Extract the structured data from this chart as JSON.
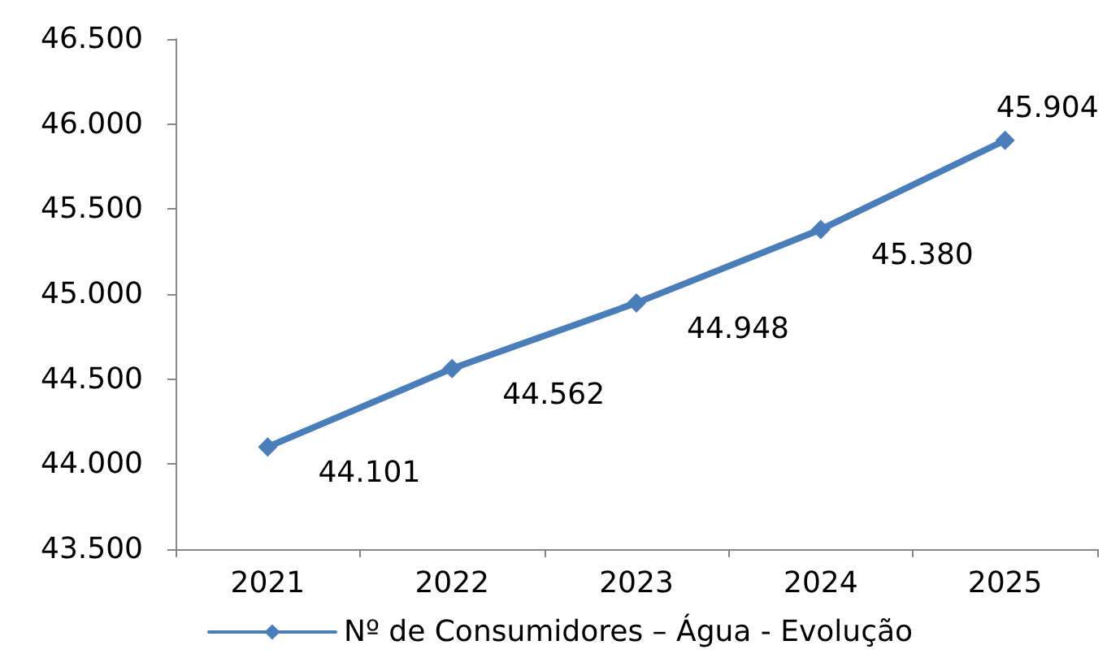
{
  "chart_data": {
    "type": "line",
    "categories": [
      "2021",
      "2022",
      "2023",
      "2024",
      "2025"
    ],
    "series": [
      {
        "name": "Nº de Consumidores – Água - Evolução",
        "color": "#4a7ebb",
        "values": [
          44101,
          44562,
          44948,
          45380,
          45904
        ],
        "value_labels": [
          "44.101",
          "44.562",
          "44.948",
          "45.380",
          "45.904"
        ]
      }
    ],
    "ylim": [
      43500,
      46500
    ],
    "yticks": [
      {
        "value": 43500,
        "label": "43.500"
      },
      {
        "value": 44000,
        "label": "44.000"
      },
      {
        "value": 44500,
        "label": "44.500"
      },
      {
        "value": 45000,
        "label": "45.000"
      },
      {
        "value": 45500,
        "label": "45.500"
      },
      {
        "value": 46000,
        "label": "46.000"
      },
      {
        "value": 46500,
        "label": "46.500"
      }
    ],
    "legend": "bottom",
    "marker": "diamond",
    "line_style": "solid"
  }
}
